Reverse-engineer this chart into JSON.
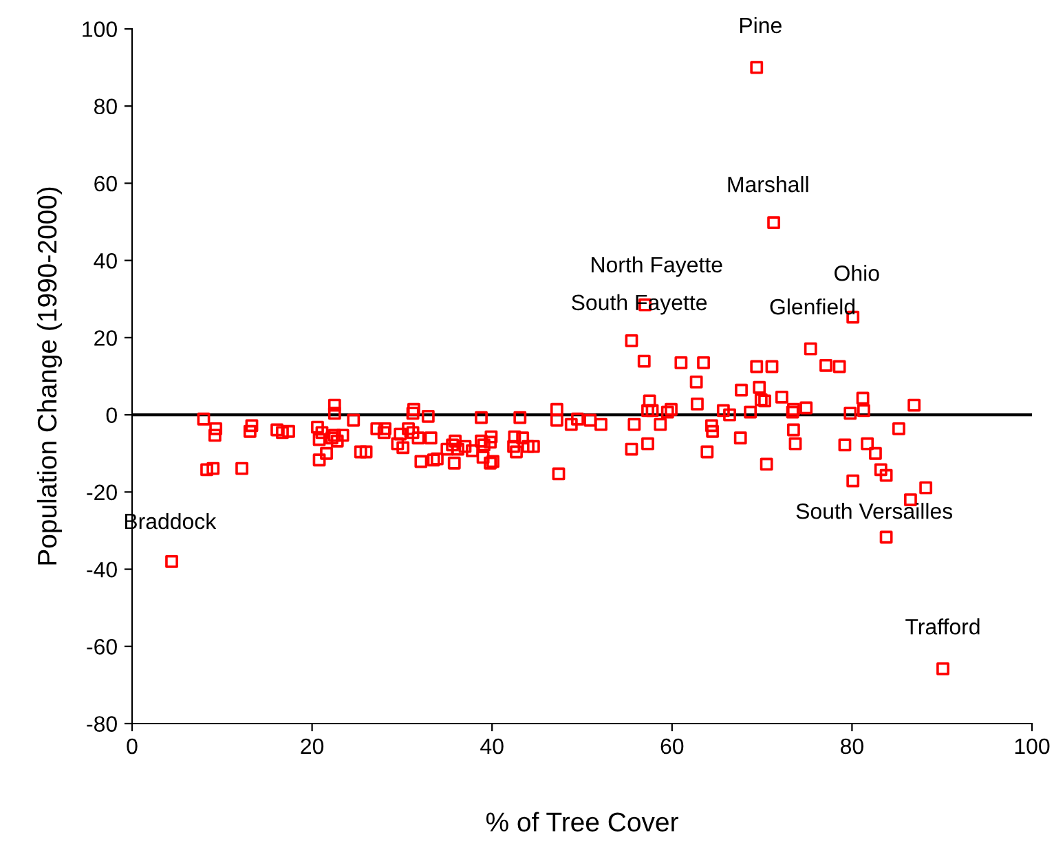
{
  "chart_data": {
    "type": "scatter",
    "xlabel": "% of Tree Cover",
    "ylabel": "Population Change (1990-2000)",
    "xlim": [
      0,
      100
    ],
    "xticks": [
      0,
      20,
      40,
      60,
      80,
      100
    ],
    "ylim": [
      -80,
      100
    ],
    "yticks": [
      -80,
      -60,
      -40,
      -20,
      0,
      20,
      40,
      60,
      80,
      100
    ],
    "grid": false,
    "legend": false,
    "marker": "square",
    "ref_lines": [
      {
        "axis": "y",
        "value": 0,
        "color": "#000000"
      }
    ],
    "series": [
      {
        "color": "#ff0000",
        "x": [
          69.4,
          71.3,
          57.0,
          55.5,
          75.4,
          80.1,
          86.5,
          83.8,
          4.4,
          90.1,
          7.95,
          8.3,
          9.0,
          9.2,
          9.3,
          12.2,
          13.1,
          13.3,
          16.1,
          16.7,
          17.4,
          20.6,
          21.1,
          20.8,
          21.6,
          20.8,
          22.5,
          22.5,
          22.5,
          22.8,
          22.2,
          23.4,
          24.6,
          25.4,
          26.0,
          27.2,
          28.0,
          28.1,
          29.8,
          29.5,
          30.1,
          30.7,
          31.2,
          31.2,
          31.3,
          31.8,
          32.1,
          32.9,
          33.2,
          33.5,
          33.9,
          35.0,
          35.6,
          35.8,
          35.9,
          36.2,
          37.0,
          37.8,
          38.8,
          39.0,
          38.8,
          39.1,
          39.8,
          39.9,
          39.8,
          40.1,
          42.5,
          42.4,
          42.7,
          43.1,
          43.4,
          44.0,
          44.6,
          47.2,
          47.2,
          47.4,
          48.8,
          52.1,
          49.5,
          50.9,
          55.5,
          55.8,
          56.9,
          57.3,
          57.3,
          57.5,
          57.8,
          58.7,
          59.5,
          59.9,
          61.0,
          62.7,
          62.8,
          63.5,
          63.9,
          64.4,
          64.5,
          65.7,
          66.4,
          67.6,
          67.7,
          68.7,
          69.4,
          69.7,
          69.9,
          70.3,
          70.5,
          71.1,
          72.2,
          73.4,
          73.5,
          73.5,
          73.7,
          74.9,
          77.1,
          78.6,
          79.2,
          79.8,
          80.1,
          81.2,
          81.3,
          81.7,
          82.6,
          83.2,
          83.8,
          85.2,
          86.9,
          88.2
        ],
        "values": [
          90,
          49.8,
          28.5,
          19.2,
          17.1,
          25.3,
          -22,
          -31.7,
          -38,
          -65.8,
          -1.1,
          -14.2,
          -13.9,
          -5.3,
          -3.6,
          -13.9,
          -4.3,
          -2.8,
          -3.9,
          -4.6,
          -4.3,
          -3.2,
          -4.6,
          -6.4,
          -10.0,
          -11.7,
          2.5,
          0.4,
          -5.3,
          -6.8,
          -6.0,
          -5.3,
          -1.4,
          -9.6,
          -9.6,
          -3.6,
          -4.6,
          -3.6,
          -5.0,
          -7.5,
          -8.5,
          -3.6,
          -4.6,
          0.4,
          1.4,
          -6.0,
          -12.1,
          -0.4,
          -6.0,
          -11.7,
          -11.4,
          -8.9,
          -7.8,
          -12.5,
          -6.8,
          -8.9,
          -8.2,
          -9.3,
          -0.7,
          -11.0,
          -6.8,
          -7.8,
          -12.5,
          -5.7,
          -7.1,
          -12.1,
          -5.7,
          -8.2,
          -9.6,
          -0.7,
          -6.0,
          -8.2,
          -8.2,
          1.4,
          -1.4,
          -15.3,
          -2.5,
          -2.5,
          -1.1,
          -1.4,
          -8.9,
          -2.5,
          13.9,
          -7.5,
          1.1,
          3.6,
          1.1,
          -2.5,
          0.7,
          1.4,
          13.5,
          8.5,
          2.8,
          13.5,
          -9.6,
          -2.8,
          -4.3,
          1.1,
          0,
          -6.0,
          6.4,
          0.7,
          12.5,
          7.1,
          3.9,
          3.6,
          -12.8,
          12.5,
          4.6,
          0.7,
          1.4,
          -3.9,
          -7.5,
          1.8,
          12.8,
          12.5,
          -7.8,
          0.4,
          -17.1,
          4.3,
          1.1,
          -7.5,
          -10.0,
          -14.2,
          -15.7,
          -3.6,
          2.5,
          -18.9
        ]
      }
    ],
    "annotations": [
      {
        "text": "Pine",
        "x": 69.4,
        "y": 90
      },
      {
        "text": "Marshall",
        "x": 71.3,
        "y": 49.8
      },
      {
        "text": "North Fayette",
        "x": 57.0,
        "y": 28.5
      },
      {
        "text": "South Fayette",
        "x": 55.5,
        "y": 19.2
      },
      {
        "text": "Glenfield",
        "x": 75.4,
        "y": 17.1
      },
      {
        "text": "Ohio",
        "x": 80.1,
        "y": 25.3
      },
      {
        "text": "South Versailles",
        "x": 86.5,
        "y": -22
      },
      {
        "text": "Braddock",
        "x": 4.4,
        "y": -38
      },
      {
        "text": "Trafford",
        "x": 90.1,
        "y": -65.8
      }
    ]
  }
}
